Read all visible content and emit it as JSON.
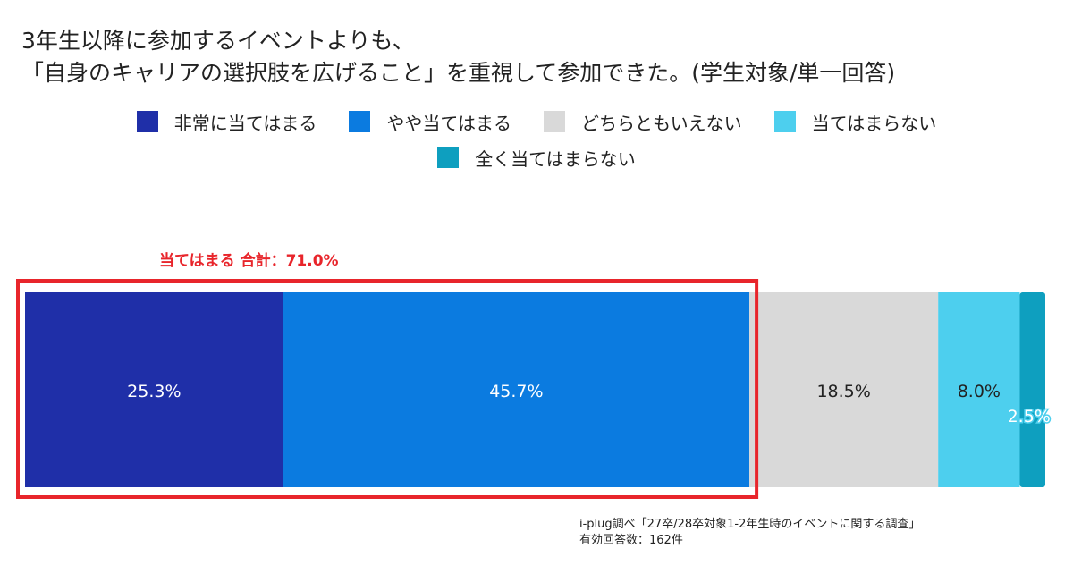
{
  "title": {
    "line1": "3年生以降に参加するイベントよりも、",
    "line2": "「自身のキャリアの選択肢を広げること」を重視して参加できた。(学生対象/単一回答)"
  },
  "highlight": {
    "label": "当てはまる 合計：71.0%",
    "color": "#e8252b"
  },
  "legend": {
    "row1": [
      {
        "label": "非常に当てはまる",
        "color": "#1f2fa8"
      },
      {
        "label": "やや当てはまる",
        "color": "#0b7be0"
      },
      {
        "label": "どちらともいえない",
        "color": "#d9d9d9"
      },
      {
        "label": "当てはまらない",
        "color": "#4dcfee"
      }
    ],
    "row2": [
      {
        "label": "全く当てはまらない",
        "color": "#0e9fbf"
      }
    ]
  },
  "chart_data": {
    "type": "bar",
    "orientation": "horizontal-stacked-100",
    "title": "3年生以降に参加するイベントよりも、「自身のキャリアの選択肢を広げること」を重視して参加できた。(学生対象/単一回答)",
    "xlim": [
      0,
      100
    ],
    "series": [
      {
        "name": "非常に当てはまる",
        "value": 25.3,
        "label": "25.3%",
        "color": "#1f2fa8",
        "label_color": "#ffffff"
      },
      {
        "name": "やや当てはまる",
        "value": 45.7,
        "label": "45.7%",
        "color": "#0b7be0",
        "label_color": "#ffffff"
      },
      {
        "name": "どちらともいえない",
        "value": 18.5,
        "label": "18.5%",
        "color": "#d9d9d9",
        "label_color": "#222222"
      },
      {
        "name": "当てはまらない",
        "value": 8.0,
        "label": "8.0%",
        "color": "#4dcfee",
        "label_color": "#222222"
      },
      {
        "name": "全く当てはまらない",
        "value": 2.5,
        "label": "2.5%",
        "color": "#0e9fbf",
        "label_color": "#ffffff"
      }
    ],
    "highlight_total": {
      "label": "当てはまる 合計：71.0%",
      "value": 71.0,
      "covers": [
        "非常に当てはまる",
        "やや当てはまる"
      ]
    }
  },
  "source": {
    "line1": "i-plug調べ「27卒/28卒対象1-2年生時のイベントに関する調査」",
    "line2": "有効回答数：162件"
  }
}
